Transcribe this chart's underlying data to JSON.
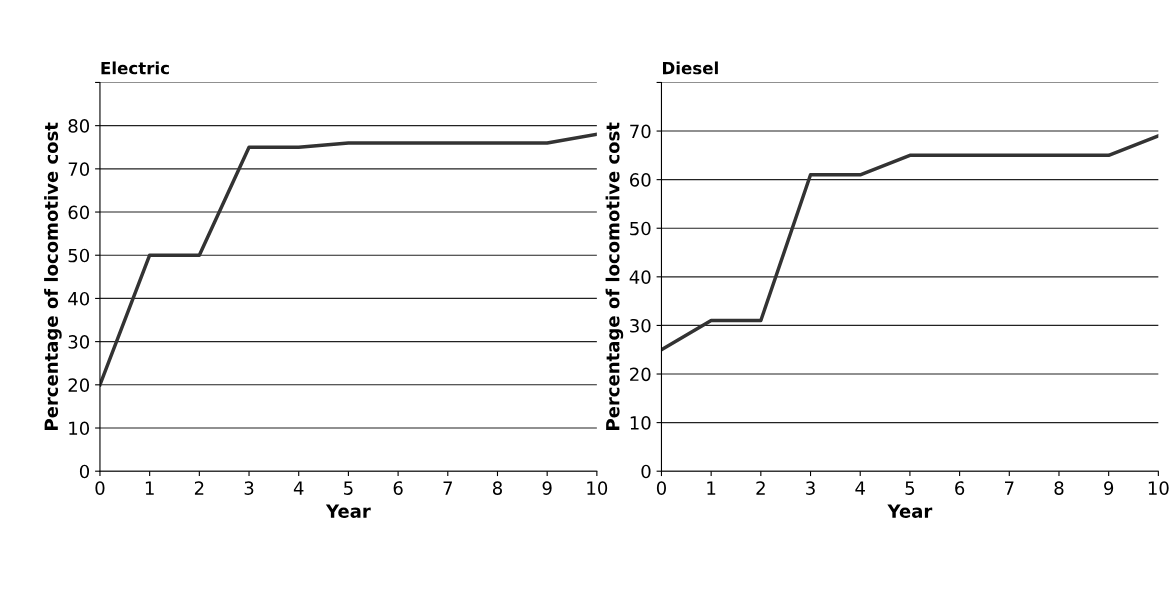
{
  "chart_data": [
    {
      "type": "line",
      "title": "Electric",
      "xlabel": "Year",
      "ylabel": "Percentage of locomotive cost",
      "x": [
        0,
        1,
        2,
        3,
        4,
        5,
        6,
        7,
        8,
        9,
        10
      ],
      "series": [
        {
          "color": "#333333",
          "values": [
            20,
            50,
            50,
            75,
            75,
            76,
            76,
            76,
            76,
            76,
            78
          ]
        }
      ],
      "xlim": [
        0,
        10
      ],
      "xticks": [
        0,
        1,
        2,
        3,
        4,
        5,
        6,
        7,
        8,
        9,
        10
      ],
      "ylim": [
        0,
        90
      ],
      "yticks": [
        0,
        10,
        20,
        30,
        40,
        50,
        60,
        70,
        80,
        {
          "value": 90,
          "label": null
        }
      ],
      "grid": "y",
      "marker": "none",
      "line_style": "solid"
    },
    {
      "type": "line",
      "title": "Diesel",
      "xlabel": "Year",
      "ylabel": "Percentage of locomotive cost",
      "x": [
        0,
        1,
        2,
        3,
        4,
        5,
        6,
        7,
        8,
        9,
        10
      ],
      "series": [
        {
          "color": "#333333",
          "values": [
            25,
            31,
            31,
            61,
            61,
            65,
            65,
            65,
            65,
            65,
            69
          ]
        }
      ],
      "xlim": [
        0,
        10
      ],
      "xticks": [
        0,
        1,
        2,
        3,
        4,
        5,
        6,
        7,
        8,
        9,
        10
      ],
      "ylim": [
        0,
        80
      ],
      "yticks": [
        0,
        10,
        20,
        30,
        40,
        50,
        60,
        70,
        {
          "value": 80,
          "label": null
        }
      ],
      "grid": "y",
      "marker": "none",
      "line_style": "solid"
    }
  ]
}
